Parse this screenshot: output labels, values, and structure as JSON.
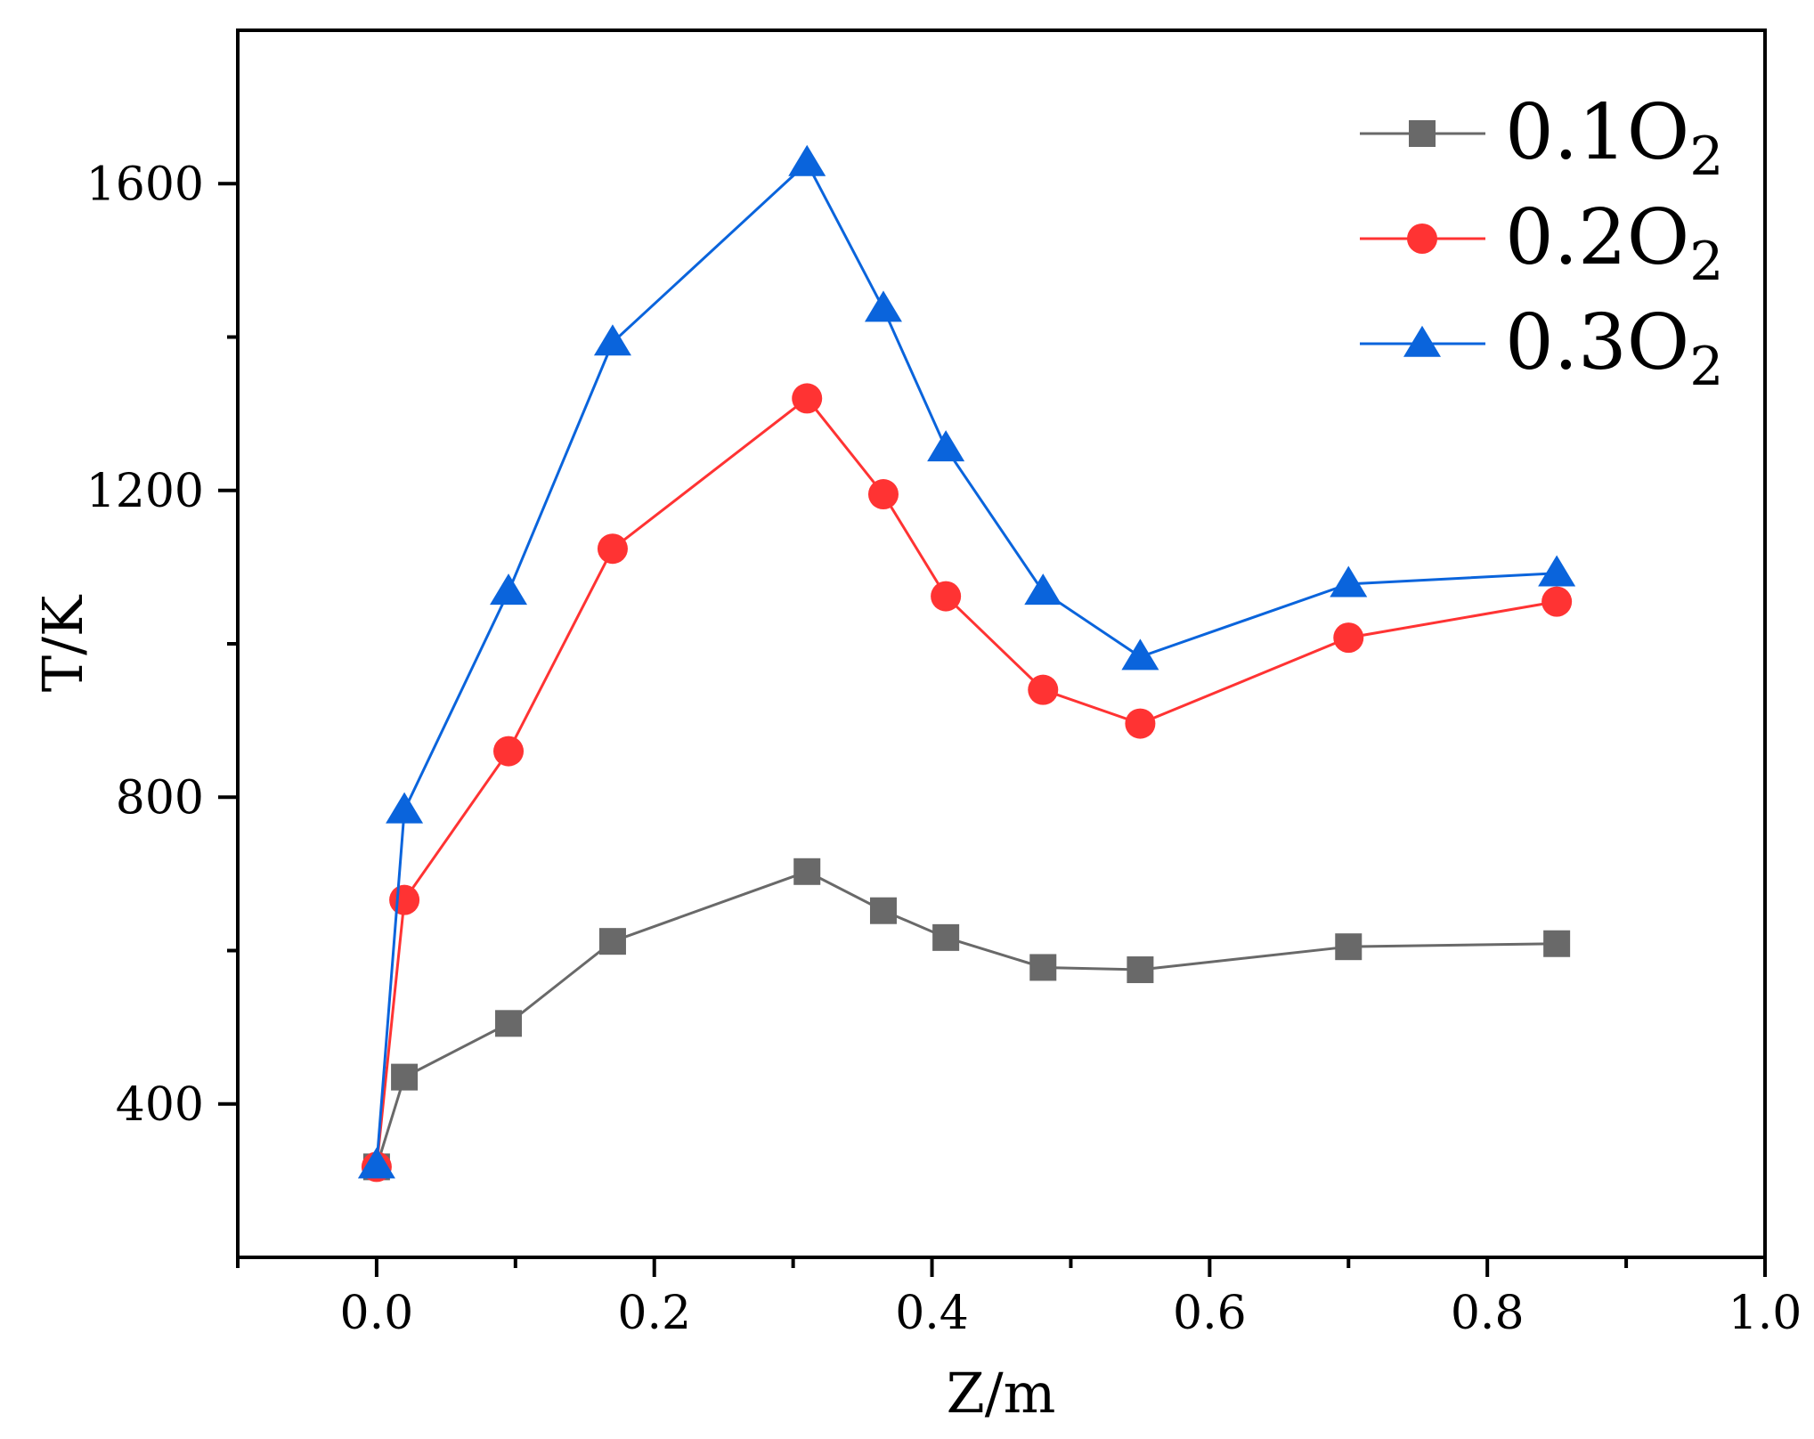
{
  "chart_data": {
    "type": "line",
    "title": "",
    "xlabel": "Z/m",
    "ylabel": "T/K",
    "xlim": [
      -0.1,
      1.0
    ],
    "ylim": [
      200,
      1800
    ],
    "x_ticks": [
      0.0,
      0.2,
      0.4,
      0.6,
      0.8,
      1.0
    ],
    "x_tick_labels": [
      "0.0",
      "0.2",
      "0.4",
      "0.6",
      "0.8",
      "1.0"
    ],
    "x_minor_ticks": [
      -0.1,
      0.1,
      0.3,
      0.5,
      0.7,
      0.9
    ],
    "y_ticks": [
      400,
      800,
      1200,
      1600
    ],
    "y_tick_labels": [
      "400",
      "800",
      "1200",
      "1600"
    ],
    "y_minor_ticks": [
      600,
      1000,
      1400
    ],
    "grid": false,
    "legend_position": "top-right",
    "x": [
      0.0,
      0.02,
      0.095,
      0.17,
      0.31,
      0.365,
      0.41,
      0.48,
      0.55,
      0.7,
      0.85
    ],
    "series": [
      {
        "name": "0.1O2",
        "label_main": "0.1O",
        "label_sub": "2",
        "color": "#696969",
        "marker": "square",
        "values": [
          318,
          435,
          505,
          612,
          703,
          652,
          617,
          578,
          575,
          605,
          609
        ]
      },
      {
        "name": "0.2O2",
        "label_main": "0.2O",
        "label_sub": "2",
        "color": "#ff3333",
        "marker": "circle",
        "values": [
          318,
          666,
          860,
          1124,
          1320,
          1195,
          1062,
          940,
          896,
          1008,
          1055
        ]
      },
      {
        "name": "0.3O2",
        "label_main": "0.3O",
        "label_sub": "2",
        "color": "#0a64dc",
        "marker": "triangle",
        "values": [
          320,
          783,
          1068,
          1393,
          1627,
          1437,
          1255,
          1068,
          983,
          1078,
          1092
        ]
      }
    ]
  }
}
